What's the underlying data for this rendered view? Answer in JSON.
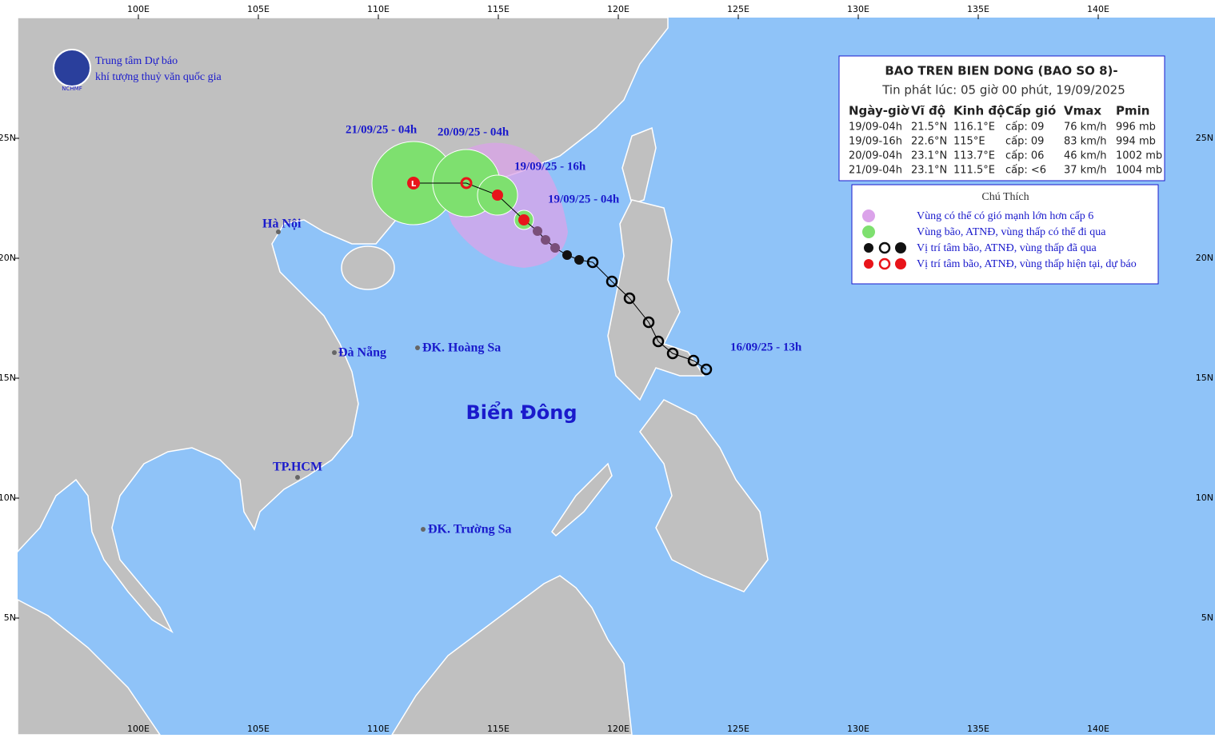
{
  "map": {
    "lon_ticks": [
      {
        "value": 100,
        "label": "100E"
      },
      {
        "value": 105,
        "label": "105E"
      },
      {
        "value": 110,
        "label": "110E"
      },
      {
        "value": 115,
        "label": "115E"
      },
      {
        "value": 120,
        "label": "120E"
      },
      {
        "value": 125,
        "label": "125E"
      },
      {
        "value": 130,
        "label": "130E"
      },
      {
        "value": 135,
        "label": "135E"
      },
      {
        "value": 140,
        "label": "140E"
      }
    ],
    "lat_ticks": [
      {
        "value": 25,
        "label": "25N"
      },
      {
        "value": 20,
        "label": "20N"
      },
      {
        "value": 15,
        "label": "15N"
      },
      {
        "value": 10,
        "label": "10N"
      },
      {
        "value": 5,
        "label": "5N"
      }
    ]
  },
  "logo": {
    "line1": "Trung tâm Dự báo",
    "line2": "khí tượng thuỷ văn quốc gia",
    "abbr": "NCHMF"
  },
  "places": [
    "Hà Nội",
    "Đà Nẵng",
    "ĐK. Hoàng Sa",
    "TP.HCM",
    "ĐK. Trường Sa"
  ],
  "sea_label": "Biển Đông",
  "track_labels": [
    "21/09/25 - 04h",
    "20/09/25 - 04h",
    "19/09/25 - 16h",
    "19/09/25 - 04h",
    "16/09/25 - 13h"
  ],
  "info": {
    "title": "BAO TREN BIEN DONG (BAO SO 8)-",
    "issued": "Tin phát lúc: 05 giờ 00 phút, 19/09/2025",
    "headers": [
      "Ngày-giờ",
      "Vĩ độ",
      "Kinh độ",
      "Cấp gió",
      "Vmax",
      "Pmin"
    ],
    "rows": [
      [
        "19/09-04h",
        "21.5°N",
        "116.1°E",
        "cấp: 09",
        "76 km/h",
        "996 mb"
      ],
      [
        "19/09-16h",
        "22.6°N",
        "115°E",
        "cấp: 09",
        "83 km/h",
        "994 mb"
      ],
      [
        "20/09-04h",
        "23.1°N",
        "113.7°E",
        "cấp: 06",
        "46 km/h",
        "1002 mb"
      ],
      [
        "21/09-04h",
        "23.1°N",
        "111.5°E",
        "cấp: <6",
        "37 km/h",
        "1004 mb"
      ]
    ]
  },
  "legend": {
    "title": "Chú Thích",
    "items": [
      "Vùng có thể có gió mạnh lớn hơn cấp 6",
      "Vùng bão, ATNĐ, vùng thấp có thể đi qua",
      "Vị trí tâm bão, ATNĐ, vùng thấp đã qua",
      "Vị trí tâm bão, ATNĐ, vùng thấp hiện tại, dự báo"
    ]
  }
}
